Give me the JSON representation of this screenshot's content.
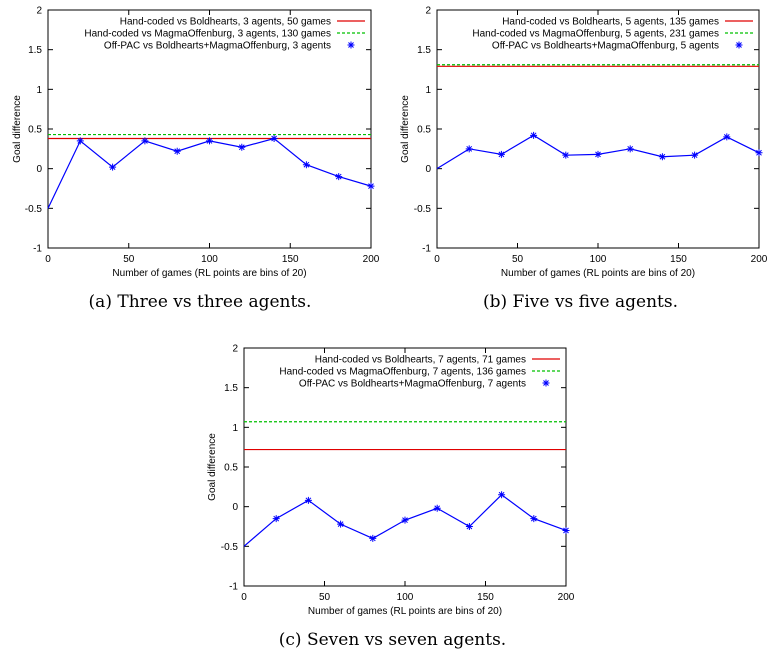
{
  "chart_data": [
    {
      "type": "line",
      "caption": "(a)  Three vs three agents.",
      "xlabel": "Number of games (RL points are bins of 20)",
      "ylabel": "Goal difference",
      "xlim": [
        0,
        200
      ],
      "ylim": [
        -1,
        2
      ],
      "xticks": [
        "0",
        "50",
        "100",
        "150",
        "200"
      ],
      "yticks": [
        "-1",
        "-0.5",
        "0",
        "0.5",
        "1",
        "1.5",
        "2"
      ],
      "legend_position": "top-right",
      "series": [
        {
          "name": "Hand-coded vs Boldhearts, 3 agents, 50 games",
          "kind": "hline",
          "color": "#e00000",
          "style": "solid",
          "y": 0.38
        },
        {
          "name": "Hand-coded vs MagmaOffenburg, 3 agents, 130 games",
          "kind": "hline",
          "color": "#00c000",
          "style": "dashed",
          "y": 0.43
        },
        {
          "name": "Off-PAC vs Boldhearts+MagmaOffenburg, 3 agents",
          "kind": "line",
          "color": "#0000ff",
          "style": "solid",
          "x": [
            0,
            20,
            40,
            60,
            80,
            100,
            120,
            140,
            160,
            180,
            200
          ],
          "y": [
            -0.5,
            0.35,
            0.02,
            0.35,
            0.22,
            0.35,
            0.27,
            0.38,
            0.05,
            -0.1,
            -0.22
          ]
        }
      ]
    },
    {
      "type": "line",
      "caption": "(b)  Five vs five agents.",
      "xlabel": "Number of games (RL points are bins of 20)",
      "ylabel": "Goal difference",
      "xlim": [
        0,
        200
      ],
      "ylim": [
        -1,
        2
      ],
      "xticks": [
        "0",
        "50",
        "100",
        "150",
        "200"
      ],
      "yticks": [
        "-1",
        "-0.5",
        "0",
        "0.5",
        "1",
        "1.5",
        "2"
      ],
      "legend_position": "top-right",
      "series": [
        {
          "name": "Hand-coded vs Boldhearts, 5 agents, 135 games",
          "kind": "hline",
          "color": "#e00000",
          "style": "solid",
          "y": 1.29
        },
        {
          "name": "Hand-coded vs MagmaOffenburg, 5 agents, 231 games",
          "kind": "hline",
          "color": "#00c000",
          "style": "dashed",
          "y": 1.31
        },
        {
          "name": "Off-PAC vs Boldhearts+MagmaOffenburg, 5 agents",
          "kind": "line",
          "color": "#0000ff",
          "style": "solid",
          "x": [
            0,
            20,
            40,
            60,
            80,
            100,
            120,
            140,
            160,
            180,
            200
          ],
          "y": [
            0.0,
            0.25,
            0.18,
            0.42,
            0.17,
            0.18,
            0.25,
            0.15,
            0.17,
            0.4,
            0.2
          ]
        }
      ]
    },
    {
      "type": "line",
      "caption": "(c)  Seven vs seven agents.",
      "xlabel": "Number of games (RL points are bins of 20)",
      "ylabel": "Goal difference",
      "xlim": [
        0,
        200
      ],
      "ylim": [
        -1,
        2
      ],
      "xticks": [
        "0",
        "50",
        "100",
        "150",
        "200"
      ],
      "yticks": [
        "-1",
        "-0.5",
        "0",
        "0.5",
        "1",
        "1.5",
        "2"
      ],
      "legend_position": "top-right",
      "series": [
        {
          "name": "Hand-coded vs Boldhearts, 7 agents, 71 games",
          "kind": "hline",
          "color": "#e00000",
          "style": "solid",
          "y": 0.72
        },
        {
          "name": "Hand-coded vs MagmaOffenburg, 7 agents, 136 games",
          "kind": "hline",
          "color": "#00c000",
          "style": "dashed",
          "y": 1.07
        },
        {
          "name": "Off-PAC vs Boldhearts+MagmaOffenburg, 7 agents",
          "kind": "line",
          "color": "#0000ff",
          "style": "solid",
          "x": [
            0,
            20,
            40,
            60,
            80,
            100,
            120,
            140,
            160,
            180,
            200
          ],
          "y": [
            -0.5,
            -0.15,
            0.08,
            -0.22,
            -0.4,
            -0.17,
            -0.02,
            -0.25,
            0.15,
            -0.15,
            -0.3
          ]
        }
      ]
    }
  ]
}
